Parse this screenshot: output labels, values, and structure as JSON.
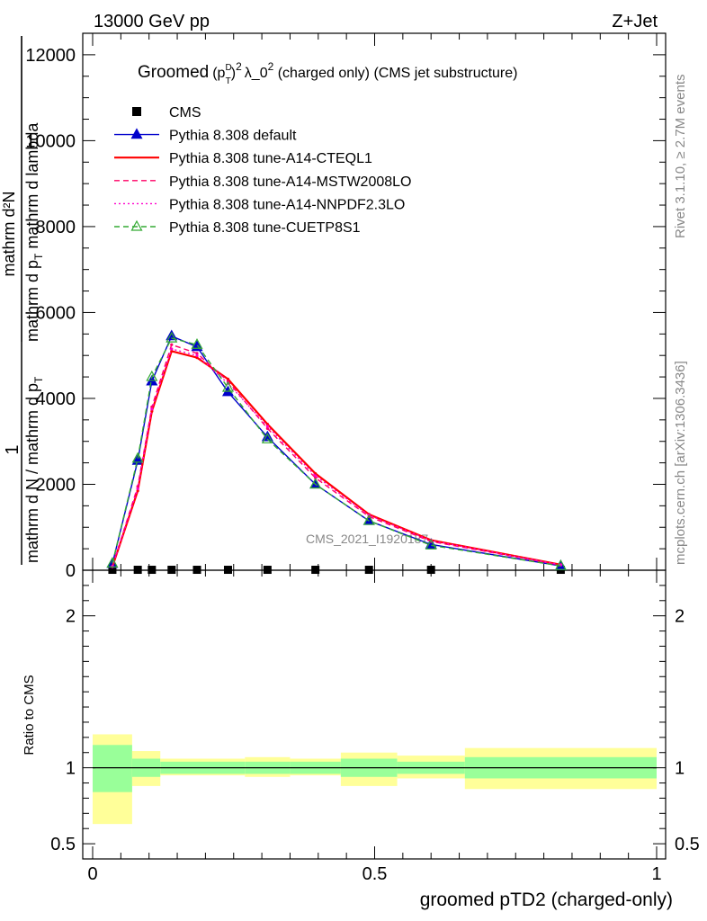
{
  "header": {
    "left": "13000 GeV pp",
    "right": "Z+Jet"
  },
  "side_labels": {
    "rivet": "Rivet 3.1.10, ≥ 2.7M events",
    "mcplots": "mcplots.cern.ch [arXiv:1306.3436]"
  },
  "watermark": "CMS_2021_I1920187",
  "chart_data": [
    {
      "type": "line",
      "title_parts": {
        "a": "Groomed",
        "b": "(p",
        "sup1": "D",
        "sub1": "T",
        "c": ")",
        "sup2": "2",
        "d": "λ_0",
        "sup3": "2",
        "e": "  (charged only) (CMS jet substructure)"
      },
      "ylabel": {
        "frac_num": "1",
        "frac_den": "mathrm d N / mathrm d p",
        "frac_den_sub": "T",
        "inner_num": "mathrm d²N",
        "inner_den_a": "mathrm d p",
        "inner_den_sub": "T",
        "inner_den_b": " mathrm d lambda"
      },
      "ylim": [
        0,
        12500
      ],
      "yticks": [
        0,
        2000,
        4000,
        6000,
        8000,
        10000,
        12000
      ],
      "ytick_labels": [
        "0",
        "2000",
        "4000",
        "6000",
        "8000",
        "10000",
        "12000"
      ],
      "legend_position": "top-left",
      "x": [
        0.035,
        0.08,
        0.105,
        0.14,
        0.185,
        0.24,
        0.31,
        0.395,
        0.49,
        0.6,
        0.83
      ],
      "series": [
        {
          "name": "CMS",
          "color": "#000000",
          "style": "marker-square",
          "values": [
            10,
            10,
            10,
            10,
            10,
            10,
            10,
            10,
            10,
            10,
            10
          ]
        },
        {
          "name": "Pythia 8.308 default",
          "color": "#0000cc",
          "style": "solid-triangle",
          "values": [
            150,
            2550,
            4400,
            5450,
            5200,
            4150,
            3100,
            2000,
            1150,
            600,
            100
          ]
        },
        {
          "name": "Pythia 8.308 tune-A14-CTEQL1",
          "color": "#ff0000",
          "style": "solid-thick",
          "values": [
            80,
            1850,
            3700,
            5100,
            4950,
            4450,
            3400,
            2250,
            1300,
            700,
            130
          ]
        },
        {
          "name": "Pythia 8.308 tune-A14-MSTW2008LO",
          "color": "#ff0066",
          "style": "dashed",
          "values": [
            90,
            1950,
            3800,
            5250,
            5050,
            4400,
            3300,
            2150,
            1250,
            670,
            120
          ]
        },
        {
          "name": "Pythia 8.308 tune-A14-NNPDF2.3LO",
          "color": "#ff00cc",
          "style": "dotted",
          "values": [
            85,
            1900,
            3750,
            5150,
            5000,
            4350,
            3350,
            2200,
            1280,
            690,
            125
          ]
        },
        {
          "name": "Pythia 8.308 tune-CUETP8S1",
          "color": "#33aa33",
          "style": "dashed-open-triangle",
          "values": [
            160,
            2600,
            4500,
            5400,
            5250,
            4250,
            3050,
            2000,
            1150,
            580,
            100
          ]
        }
      ]
    },
    {
      "type": "area",
      "ylabel": "Ratio to CMS",
      "xlabel": "groomed pTD2 (charged-only)",
      "xlim": [
        0,
        1
      ],
      "ylim": [
        0.4,
        2.3
      ],
      "xticks": [
        0,
        0.5,
        1
      ],
      "xtick_labels": [
        "0",
        "0.5",
        "1"
      ],
      "yticks": [
        0.5,
        1,
        2
      ],
      "ytick_labels": [
        "0.5",
        "1",
        "2"
      ],
      "reference_line": 1,
      "bands": {
        "edges": [
          0.0,
          0.07,
          0.12,
          0.27,
          0.35,
          0.44,
          0.54,
          0.66,
          1.0
        ],
        "inner_lo": [
          0.84,
          0.94,
          0.96,
          0.96,
          0.96,
          0.94,
          0.96,
          0.93
        ],
        "inner_hi": [
          1.15,
          1.06,
          1.04,
          1.04,
          1.04,
          1.06,
          1.04,
          1.07
        ],
        "outer_lo": [
          0.63,
          0.88,
          0.95,
          0.94,
          0.95,
          0.88,
          0.93,
          0.86
        ],
        "outer_hi": [
          1.22,
          1.11,
          1.06,
          1.07,
          1.06,
          1.1,
          1.08,
          1.13
        ],
        "inner_color": "#99ff99",
        "outer_color": "#ffff99"
      }
    }
  ]
}
